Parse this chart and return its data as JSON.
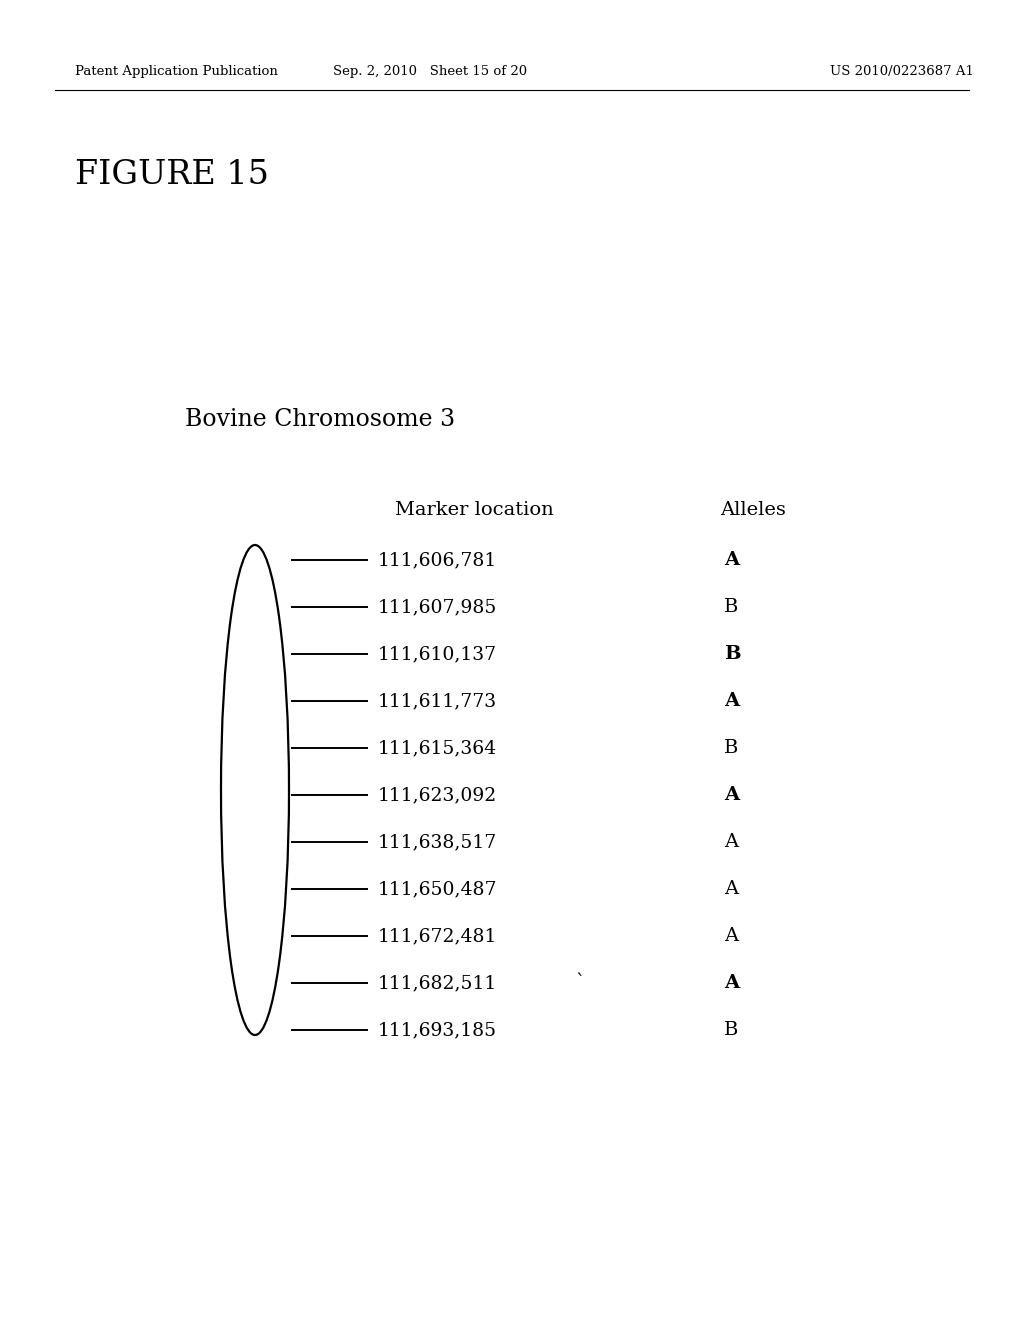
{
  "header_left": "Patent Application Publication",
  "header_mid": "Sep. 2, 2010   Sheet 15 of 20",
  "header_right": "US 2010/0223687 A1",
  "figure_title": "FIGURE 15",
  "chromosome_label": "Bovine Chromosome 3",
  "col_marker_label": "Marker location",
  "col_allele_label": "Alleles",
  "markers": [
    {
      "location": "111,606,781",
      "allele": "A",
      "bold": true
    },
    {
      "location": "111,607,985",
      "allele": "B",
      "bold": false
    },
    {
      "location": "111,610,137",
      "allele": "B",
      "bold": true
    },
    {
      "location": "111,611,773",
      "allele": "A",
      "bold": true
    },
    {
      "location": "111,615,364",
      "allele": "B",
      "bold": false
    },
    {
      "location": "111,623,092",
      "allele": "A",
      "bold": true
    },
    {
      "location": "111,638,517",
      "allele": "A",
      "bold": false
    },
    {
      "location": "111,650,487",
      "allele": "A",
      "bold": false
    },
    {
      "location": "111,672,481",
      "allele": "A",
      "bold": false
    },
    {
      "location": "111,682,511",
      "allele": "A",
      "bold": true,
      "backtick": true
    },
    {
      "location": "111,693,185",
      "allele": "B",
      "bold": false
    }
  ],
  "bg_color": "#ffffff",
  "text_color": "#000000"
}
